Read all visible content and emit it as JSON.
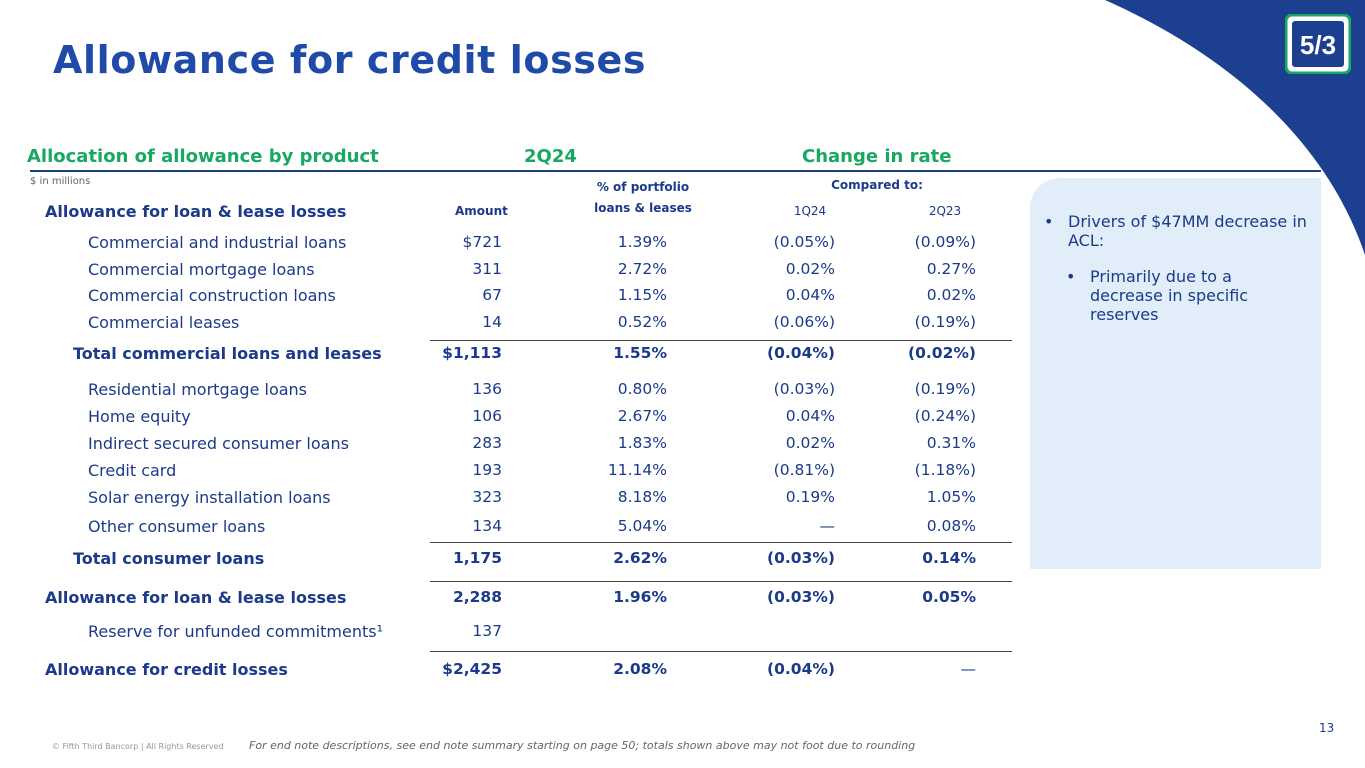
{
  "title": "Allowance for credit losses",
  "section": {
    "left": "Allocation of allowance by product",
    "period": "2Q24",
    "change": "Change in rate"
  },
  "units_note": "$ in millions",
  "col_headers": {
    "first_row_label": "Allowance for loan & lease losses",
    "amount": "Amount",
    "pct_line1": "% of portfolio",
    "pct_line2": "loans & leases",
    "compared_to": "Compared to:",
    "q1": "1Q24",
    "q2": "2Q23"
  },
  "rows": [
    {
      "label": "Commercial and industrial loans",
      "amount": "$721",
      "pct": "1.39%",
      "c1": "(0.05%)",
      "c2": "(0.09%)"
    },
    {
      "label": "Commercial mortgage loans",
      "amount": "311",
      "pct": "2.72%",
      "c1": "0.02%",
      "c2": "0.27%"
    },
    {
      "label": "Commercial construction loans",
      "amount": "67",
      "pct": "1.15%",
      "c1": "0.04%",
      "c2": "0.02%"
    },
    {
      "label": "Commercial leases",
      "amount": "14",
      "pct": "0.52%",
      "c1": "(0.06%)",
      "c2": "(0.19%)"
    },
    {
      "label": "Total commercial loans and leases",
      "amount": "$1,113",
      "pct": "1.55%",
      "c1": "(0.04%)",
      "c2": "(0.02%)"
    },
    {
      "label": "Residential mortgage loans",
      "amount": "136",
      "pct": "0.80%",
      "c1": "(0.03%)",
      "c2": "(0.19%)"
    },
    {
      "label": "Home equity",
      "amount": "106",
      "pct": "2.67%",
      "c1": "0.04%",
      "c2": "(0.24%)"
    },
    {
      "label": "Indirect secured consumer loans",
      "amount": "283",
      "pct": "1.83%",
      "c1": "0.02%",
      "c2": "0.31%"
    },
    {
      "label": "Credit card",
      "amount": "193",
      "pct": "11.14%",
      "c1": "(0.81%)",
      "c2": "(1.18%)"
    },
    {
      "label": "Solar energy installation loans",
      "amount": "323",
      "pct": "8.18%",
      "c1": "0.19%",
      "c2": "1.05%"
    },
    {
      "label": "Other consumer loans",
      "amount": "134",
      "pct": "5.04%",
      "c1": "—",
      "c2": "0.08%"
    },
    {
      "label": "Total consumer loans",
      "amount": "1,175",
      "pct": "2.62%",
      "c1": "(0.03%)",
      "c2": "0.14%"
    },
    {
      "label": "Allowance for loan & lease losses",
      "amount": "2,288",
      "pct": "1.96%",
      "c1": "(0.03%)",
      "c2": "0.05%"
    },
    {
      "label": "Reserve for unfunded commitments¹",
      "amount": "137",
      "pct": "",
      "c1": "",
      "c2": ""
    },
    {
      "label": "Allowance for credit losses",
      "amount": "$2,425",
      "pct": "2.08%",
      "c1": "(0.04%)",
      "c2": "—"
    }
  ],
  "side_notes": {
    "bullet1": "Drivers of $47MM decrease in ACL:",
    "bullet2": "Primarily due to a decrease in specific reserves",
    "marker": "•"
  },
  "footer": {
    "copyright": "© Fifth Third Bancorp | All Rights Reserved",
    "note": "For end note descriptions, see end note summary starting on page 50; totals shown above may not foot due to rounding",
    "page": "13"
  },
  "colors": {
    "title_blue": "#1f4aa8",
    "text_blue": "#1b3a8a",
    "section_green": "#18a860",
    "corner_navy": "#1c3f8f",
    "panel": "#e1eef9"
  },
  "logo": {
    "name": "fifth-third-logo",
    "text": "5/3"
  }
}
